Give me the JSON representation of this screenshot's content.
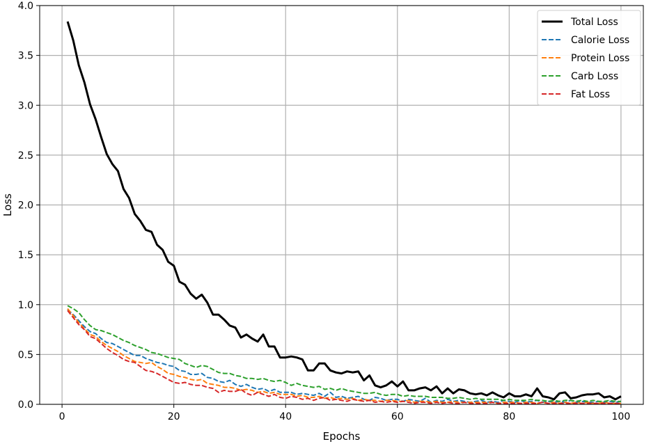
{
  "chart_data": {
    "type": "line",
    "title": "",
    "xlabel": "Epochs",
    "ylabel": "Loss",
    "xlim": [
      -4,
      104
    ],
    "ylim": [
      0,
      4.0
    ],
    "xticks": [
      0,
      20,
      40,
      60,
      80,
      100
    ],
    "yticks": [
      0.0,
      0.5,
      1.0,
      1.5,
      2.0,
      2.5,
      3.0,
      3.5,
      4.0
    ],
    "xtick_labels": [
      "0",
      "20",
      "40",
      "60",
      "80",
      "100"
    ],
    "ytick_labels": [
      "0.0",
      "0.5",
      "1.0",
      "1.5",
      "2.0",
      "2.5",
      "3.0",
      "3.5",
      "4.0"
    ],
    "grid": true,
    "legend_position": "top-right",
    "x": [
      1,
      2,
      3,
      4,
      5,
      6,
      7,
      8,
      9,
      10,
      11,
      12,
      13,
      14,
      15,
      16,
      17,
      18,
      19,
      20,
      21,
      22,
      23,
      24,
      25,
      26,
      27,
      28,
      29,
      30,
      31,
      32,
      33,
      34,
      35,
      36,
      37,
      38,
      39,
      40,
      41,
      42,
      43,
      44,
      45,
      46,
      47,
      48,
      49,
      50,
      51,
      52,
      53,
      54,
      55,
      56,
      57,
      58,
      59,
      60,
      61,
      62,
      63,
      64,
      65,
      66,
      67,
      68,
      69,
      70,
      71,
      72,
      73,
      74,
      75,
      76,
      77,
      78,
      79,
      80,
      81,
      82,
      83,
      84,
      85,
      86,
      87,
      88,
      89,
      90,
      91,
      92,
      93,
      94,
      95,
      96,
      97,
      98,
      99,
      100
    ],
    "series": [
      {
        "name": "Total Loss",
        "color": "#000000",
        "style": "solid",
        "values": [
          3.84,
          3.65,
          3.4,
          3.23,
          3.01,
          2.86,
          2.68,
          2.51,
          2.41,
          2.34,
          2.16,
          2.07,
          1.91,
          1.84,
          1.75,
          1.73,
          1.6,
          1.55,
          1.43,
          1.39,
          1.23,
          1.2,
          1.11,
          1.06,
          1.1,
          1.02,
          0.9,
          0.9,
          0.85,
          0.79,
          0.77,
          0.67,
          0.7,
          0.66,
          0.63,
          0.7,
          0.58,
          0.58,
          0.47,
          0.47,
          0.48,
          0.47,
          0.45,
          0.34,
          0.34,
          0.41,
          0.41,
          0.34,
          0.32,
          0.31,
          0.33,
          0.32,
          0.33,
          0.24,
          0.29,
          0.19,
          0.17,
          0.19,
          0.23,
          0.18,
          0.23,
          0.14,
          0.14,
          0.16,
          0.17,
          0.14,
          0.18,
          0.11,
          0.16,
          0.11,
          0.15,
          0.14,
          0.11,
          0.1,
          0.11,
          0.09,
          0.12,
          0.09,
          0.07,
          0.11,
          0.08,
          0.08,
          0.1,
          0.08,
          0.16,
          0.08,
          0.07,
          0.05,
          0.11,
          0.12,
          0.06,
          0.07,
          0.09,
          0.1,
          0.1,
          0.11,
          0.07,
          0.08,
          0.05,
          0.08
        ]
      },
      {
        "name": "Calorie Loss",
        "color": "#1f77b4",
        "style": "dashed",
        "values": [
          0.95,
          0.9,
          0.84,
          0.78,
          0.73,
          0.71,
          0.66,
          0.62,
          0.61,
          0.58,
          0.55,
          0.52,
          0.49,
          0.49,
          0.46,
          0.44,
          0.42,
          0.41,
          0.39,
          0.38,
          0.34,
          0.33,
          0.3,
          0.3,
          0.31,
          0.27,
          0.26,
          0.23,
          0.22,
          0.24,
          0.2,
          0.18,
          0.2,
          0.17,
          0.15,
          0.16,
          0.13,
          0.15,
          0.12,
          0.12,
          0.12,
          0.1,
          0.11,
          0.1,
          0.09,
          0.11,
          0.08,
          0.12,
          0.07,
          0.08,
          0.06,
          0.07,
          0.08,
          0.05,
          0.04,
          0.07,
          0.06,
          0.04,
          0.05,
          0.05,
          0.03,
          0.05,
          0.04,
          0.03,
          0.06,
          0.02,
          0.04,
          0.03,
          0.05,
          0.03,
          0.04,
          0.03,
          0.02,
          0.03,
          0.04,
          0.02,
          0.03,
          0.02,
          0.04,
          0.03,
          0.02,
          0.04,
          0.02,
          0.03,
          0.04,
          0.02,
          0.03,
          0.02,
          0.03,
          0.02,
          0.04,
          0.02,
          0.03,
          0.02,
          0.02,
          0.03,
          0.02,
          0.03,
          0.02,
          0.03
        ]
      },
      {
        "name": "Protein Loss",
        "color": "#ff7f0e",
        "style": "dashed",
        "values": [
          0.96,
          0.89,
          0.82,
          0.76,
          0.7,
          0.68,
          0.63,
          0.59,
          0.56,
          0.53,
          0.49,
          0.46,
          0.43,
          0.42,
          0.41,
          0.42,
          0.38,
          0.35,
          0.31,
          0.3,
          0.28,
          0.27,
          0.25,
          0.24,
          0.25,
          0.21,
          0.2,
          0.19,
          0.17,
          0.17,
          0.16,
          0.14,
          0.15,
          0.14,
          0.12,
          0.13,
          0.11,
          0.12,
          0.1,
          0.1,
          0.1,
          0.08,
          0.09,
          0.07,
          0.07,
          0.08,
          0.06,
          0.07,
          0.05,
          0.06,
          0.05,
          0.06,
          0.04,
          0.05,
          0.04,
          0.04,
          0.03,
          0.04,
          0.04,
          0.03,
          0.03,
          0.04,
          0.02,
          0.03,
          0.03,
          0.02,
          0.03,
          0.02,
          0.02,
          0.03,
          0.02,
          0.02,
          0.02,
          0.02,
          0.02,
          0.02,
          0.02,
          0.01,
          0.02,
          0.02,
          0.02,
          0.01,
          0.02,
          0.02,
          0.01,
          0.02,
          0.01,
          0.02,
          0.01,
          0.02,
          0.01,
          0.02,
          0.01,
          0.02,
          0.01,
          0.01,
          0.02,
          0.01,
          0.01,
          0.01
        ]
      },
      {
        "name": "Carb Loss",
        "color": "#2ca02c",
        "style": "dashed",
        "values": [
          0.99,
          0.96,
          0.92,
          0.85,
          0.79,
          0.75,
          0.74,
          0.72,
          0.7,
          0.67,
          0.64,
          0.62,
          0.59,
          0.57,
          0.55,
          0.52,
          0.51,
          0.49,
          0.47,
          0.46,
          0.45,
          0.41,
          0.39,
          0.37,
          0.39,
          0.38,
          0.35,
          0.32,
          0.31,
          0.31,
          0.29,
          0.28,
          0.26,
          0.26,
          0.25,
          0.26,
          0.24,
          0.23,
          0.24,
          0.22,
          0.19,
          0.21,
          0.19,
          0.18,
          0.17,
          0.18,
          0.15,
          0.16,
          0.14,
          0.16,
          0.14,
          0.13,
          0.12,
          0.11,
          0.11,
          0.12,
          0.1,
          0.09,
          0.1,
          0.1,
          0.08,
          0.09,
          0.08,
          0.08,
          0.08,
          0.07,
          0.07,
          0.07,
          0.06,
          0.06,
          0.07,
          0.06,
          0.05,
          0.06,
          0.05,
          0.05,
          0.05,
          0.05,
          0.04,
          0.05,
          0.04,
          0.04,
          0.04,
          0.05,
          0.04,
          0.04,
          0.03,
          0.04,
          0.03,
          0.04,
          0.04,
          0.03,
          0.04,
          0.03,
          0.04,
          0.03,
          0.03,
          0.04,
          0.03,
          0.03
        ]
      },
      {
        "name": "Fat Loss",
        "color": "#d62728",
        "style": "dashed",
        "values": [
          0.94,
          0.87,
          0.8,
          0.75,
          0.68,
          0.66,
          0.61,
          0.56,
          0.52,
          0.49,
          0.45,
          0.43,
          0.42,
          0.38,
          0.34,
          0.33,
          0.31,
          0.28,
          0.25,
          0.22,
          0.21,
          0.22,
          0.2,
          0.19,
          0.19,
          0.17,
          0.16,
          0.12,
          0.14,
          0.13,
          0.13,
          0.15,
          0.11,
          0.09,
          0.12,
          0.1,
          0.08,
          0.1,
          0.07,
          0.06,
          0.08,
          0.07,
          0.05,
          0.06,
          0.04,
          0.06,
          0.07,
          0.04,
          0.05,
          0.04,
          0.03,
          0.05,
          0.04,
          0.03,
          0.04,
          0.02,
          0.03,
          0.02,
          0.03,
          0.02,
          0.03,
          0.02,
          0.01,
          0.02,
          0.02,
          0.01,
          0.02,
          0.01,
          0.02,
          0.01,
          0.01,
          0.02,
          0.01,
          0.01,
          0.01,
          0.01,
          0.02,
          0.01,
          0.01,
          0.01,
          0.01,
          0.01,
          0.01,
          0.01,
          0.01,
          0.02,
          0.01,
          0.01,
          0.01,
          0.01,
          0.01,
          0.01,
          0.01,
          0.01,
          0.01,
          0.01,
          0.01,
          0.01,
          0.01,
          0.01
        ]
      }
    ]
  }
}
